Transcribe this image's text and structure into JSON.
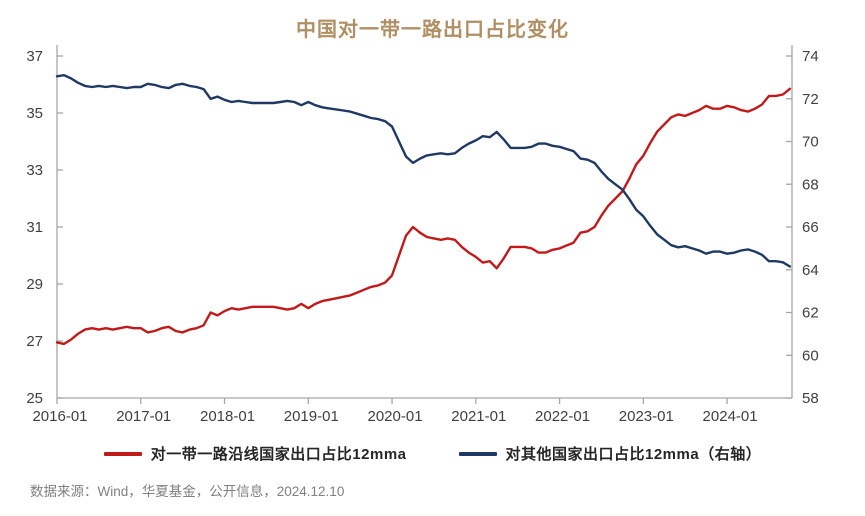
{
  "title": "中国对一带一路出口占比变化",
  "source": "数据来源：Wind，华夏基金，公开信息，2024.12.10",
  "colors": {
    "red": "#C21A1A",
    "navy": "#1F3864",
    "title": "#AF8F63",
    "axis_line": "#A6A6A6",
    "axis_text": "#404040",
    "legend_text": "#262626",
    "source_text": "#808080"
  },
  "legend": [
    {
      "label": "对一带一路沿线国家出口占比12mma",
      "color_key": "red"
    },
    {
      "label": "对其他国家出口占比12mma（右轴）",
      "color_key": "navy"
    }
  ],
  "chart_data": {
    "type": "line",
    "title": "中国对一带一路出口占比变化",
    "frequency": "monthly",
    "x_start": "2016-01",
    "x_end": "2024-10",
    "x_tick_labels": [
      "2016-01",
      "2017-01",
      "2018-01",
      "2019-01",
      "2020-01",
      "2021-01",
      "2022-01",
      "2023-01",
      "2024-01"
    ],
    "left_axis": {
      "min": 25,
      "max": 37,
      "ticks": [
        37,
        35,
        33,
        31,
        29,
        27,
        25
      ]
    },
    "right_axis": {
      "min": 58,
      "max": 74,
      "ticks": [
        74,
        72,
        70,
        68,
        66,
        64,
        62,
        60,
        58
      ]
    },
    "grid": false,
    "legend_position": "bottom",
    "series": [
      {
        "name": "对一带一路沿线国家出口占比12mma",
        "axis": "left",
        "color": "#C21A1A",
        "values": [
          26.95,
          26.9,
          27.05,
          27.25,
          27.4,
          27.45,
          27.4,
          27.45,
          27.4,
          27.45,
          27.5,
          27.45,
          27.45,
          27.3,
          27.35,
          27.45,
          27.5,
          27.35,
          27.3,
          27.4,
          27.45,
          27.55,
          28.0,
          27.9,
          28.05,
          28.15,
          28.1,
          28.15,
          28.2,
          28.2,
          28.2,
          28.2,
          28.15,
          28.1,
          28.15,
          28.3,
          28.15,
          28.3,
          28.4,
          28.45,
          28.5,
          28.55,
          28.6,
          28.7,
          28.8,
          28.9,
          28.95,
          29.05,
          29.3,
          30.0,
          30.7,
          31.0,
          30.8,
          30.65,
          30.6,
          30.55,
          30.6,
          30.55,
          30.3,
          30.1,
          29.95,
          29.75,
          29.8,
          29.55,
          29.9,
          30.3,
          30.3,
          30.3,
          30.25,
          30.1,
          30.1,
          30.2,
          30.25,
          30.35,
          30.45,
          30.8,
          30.85,
          31.0,
          31.4,
          31.75,
          32.0,
          32.25,
          32.7,
          33.2,
          33.5,
          33.95,
          34.35,
          34.6,
          34.85,
          34.95,
          34.9,
          35.0,
          35.1,
          35.25,
          35.15,
          35.15,
          35.25,
          35.2,
          35.1,
          35.05,
          35.15,
          35.3,
          35.6,
          35.6,
          35.65,
          35.85
        ]
      },
      {
        "name": "对其他国家出口占比12mma（右轴）",
        "axis": "right",
        "color": "#1F3864",
        "values": [
          73.05,
          73.1,
          72.95,
          72.75,
          72.6,
          72.55,
          72.6,
          72.55,
          72.6,
          72.55,
          72.5,
          72.55,
          72.55,
          72.7,
          72.65,
          72.55,
          72.5,
          72.65,
          72.7,
          72.6,
          72.55,
          72.45,
          72.0,
          72.1,
          71.95,
          71.85,
          71.9,
          71.85,
          71.8,
          71.8,
          71.8,
          71.8,
          71.85,
          71.9,
          71.85,
          71.7,
          71.85,
          71.7,
          71.6,
          71.55,
          71.5,
          71.45,
          71.4,
          71.3,
          71.2,
          71.1,
          71.05,
          70.95,
          70.7,
          70.0,
          69.3,
          69.0,
          69.2,
          69.35,
          69.4,
          69.45,
          69.4,
          69.45,
          69.7,
          69.9,
          70.05,
          70.25,
          70.2,
          70.45,
          70.1,
          69.7,
          69.7,
          69.7,
          69.75,
          69.9,
          69.9,
          69.8,
          69.75,
          69.65,
          69.55,
          69.2,
          69.15,
          69.0,
          68.6,
          68.25,
          68.0,
          67.75,
          67.3,
          66.8,
          66.5,
          66.05,
          65.65,
          65.4,
          65.15,
          65.05,
          65.1,
          65.0,
          64.9,
          64.75,
          64.85,
          64.85,
          64.75,
          64.8,
          64.9,
          64.95,
          64.85,
          64.7,
          64.4,
          64.4,
          64.35,
          64.15
        ]
      }
    ]
  }
}
